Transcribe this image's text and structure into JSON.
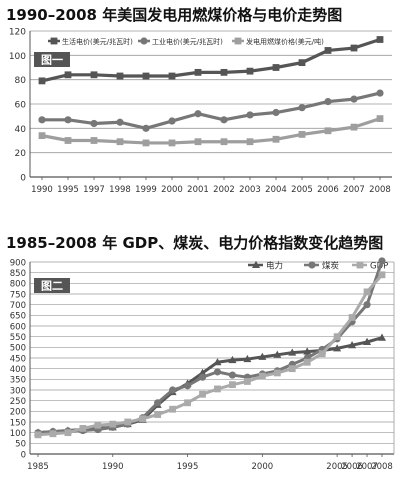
{
  "colors": {
    "grid": "#9a9a9a",
    "axis": "#555555",
    "panel_label_bg": "#555555",
    "panel_label_fg": "#ffffff"
  },
  "chart_data": [
    {
      "type": "line",
      "title": "1990–2008 年美国发电用燃煤价格与电价走势图",
      "panel_label": "图一",
      "categories": [
        "1990",
        "1995",
        "1997",
        "1998",
        "1999",
        "2000",
        "2001",
        "2002",
        "2003",
        "2004",
        "2005",
        "2006",
        "2007",
        "2008"
      ],
      "ylim": [
        0,
        120
      ],
      "yticks": [
        0,
        20,
        40,
        60,
        80,
        100,
        120
      ],
      "grid": true,
      "legend_position": "top",
      "series": [
        {
          "name": "生活电价(美元/兆瓦时)",
          "color": "#555555",
          "marker": "square",
          "values": [
            79,
            84,
            84,
            83,
            83,
            83,
            86,
            86,
            87,
            90,
            94,
            104,
            106,
            113
          ]
        },
        {
          "name": "工业电价(美元/兆瓦时)",
          "color": "#777777",
          "marker": "circle",
          "values": [
            47,
            47,
            44,
            45,
            40,
            46,
            52,
            47,
            51,
            53,
            57,
            62,
            64,
            69
          ]
        },
        {
          "name": "发电用燃煤价格(美元/吨)",
          "color": "#9e9e9e",
          "marker": "square",
          "values": [
            34,
            30,
            30,
            29,
            28,
            28,
            29,
            29,
            29,
            31,
            35,
            38,
            41,
            48
          ]
        }
      ]
    },
    {
      "type": "line",
      "title": "1985–2008 年 GDP、煤炭、电力价格指数变化趋势图",
      "panel_label": "图二",
      "x": [
        1985,
        1986,
        1987,
        1988,
        1989,
        1990,
        1991,
        1992,
        1993,
        1994,
        1995,
        1996,
        1997,
        1998,
        1999,
        2000,
        2001,
        2002,
        2003,
        2004,
        2005,
        2006,
        2007,
        2008
      ],
      "xticks": [
        "1985",
        "1990",
        "1995",
        "2000",
        "2005",
        "2006",
        "2007",
        "2008"
      ],
      "xtick_values": [
        1985,
        1990,
        1995,
        2000,
        2005,
        2006,
        2007,
        2008
      ],
      "ylim": [
        0,
        900
      ],
      "yticks": [
        0,
        50,
        100,
        150,
        200,
        250,
        300,
        350,
        400,
        450,
        500,
        550,
        600,
        650,
        700,
        750,
        800,
        850,
        900
      ],
      "grid": true,
      "legend_position": "top-right",
      "series": [
        {
          "name": "电力",
          "color": "#555555",
          "marker": "triangle",
          "values": [
            100,
            105,
            110,
            115,
            120,
            125,
            140,
            160,
            230,
            290,
            330,
            380,
            430,
            440,
            445,
            455,
            465,
            475,
            480,
            485,
            495,
            510,
            525,
            545
          ]
        },
        {
          "name": "煤炭",
          "color": "#777777",
          "marker": "circle",
          "values": [
            100,
            105,
            108,
            110,
            115,
            125,
            140,
            170,
            240,
            300,
            320,
            360,
            385,
            370,
            360,
            375,
            390,
            420,
            450,
            490,
            540,
            620,
            700,
            905
          ]
        },
        {
          "name": "GDP",
          "color": "#aaaaaa",
          "marker": "square",
          "values": [
            90,
            95,
            100,
            120,
            135,
            140,
            150,
            165,
            185,
            210,
            240,
            280,
            305,
            325,
            340,
            365,
            380,
            400,
            430,
            470,
            550,
            640,
            760,
            840
          ]
        }
      ]
    }
  ]
}
